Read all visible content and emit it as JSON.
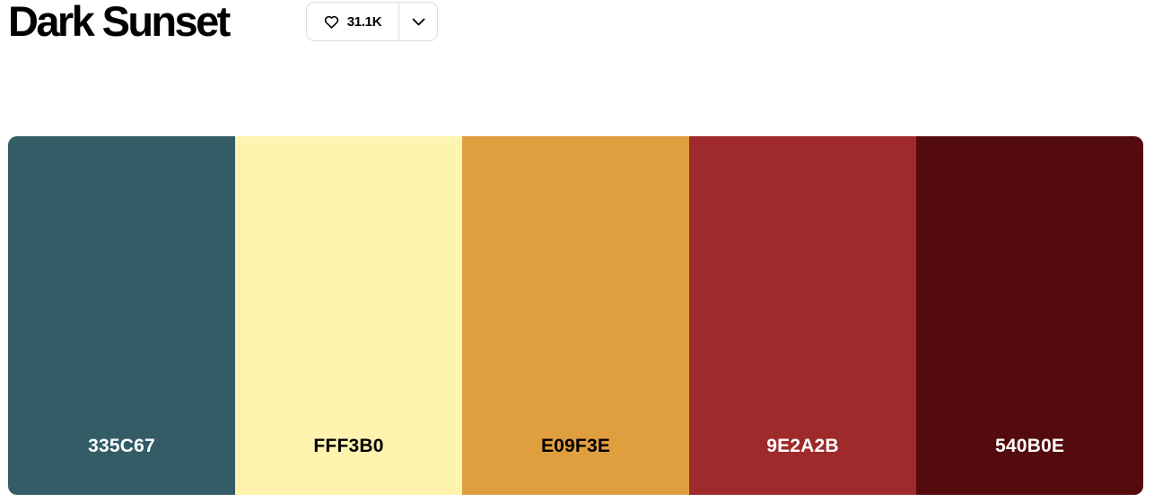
{
  "palette_title": "Dark Sunset",
  "likes": {
    "count": "31.1K",
    "icon": "heart-icon",
    "menu_icon": "chevron-down-icon"
  },
  "colors": [
    {
      "hex": "335C67",
      "color": "#335C67",
      "text_color": "#ffffff"
    },
    {
      "hex": "FFF3B0",
      "color": "#FFF3B0",
      "text_color": "#000000"
    },
    {
      "hex": "E09F3E",
      "color": "#E09F3E",
      "text_color": "#000000"
    },
    {
      "hex": "9E2A2B",
      "color": "#9E2A2B",
      "text_color": "#ffffff"
    },
    {
      "hex": "540B0E",
      "color": "#540B0E",
      "text_color": "#ffffff"
    }
  ]
}
